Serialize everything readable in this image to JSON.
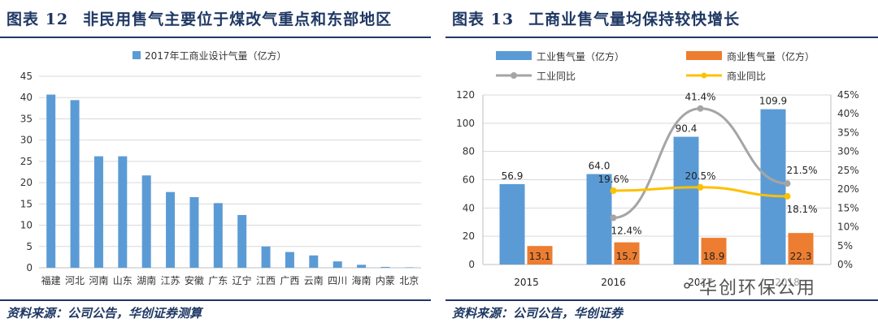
{
  "left": {
    "fig_label": "图表 12",
    "fig_title": "非民用售气主要位于煤改气重点和东部地区",
    "source": "资料来源：公司公告，华创证券测算"
  },
  "right": {
    "fig_label": "图表 13",
    "fig_title": "工商业售气量均保持较快增长",
    "source": "资料来源：公司公告，华创证券"
  },
  "watermark": {
    "text": "华创环保公用",
    "icon": "wechat-icon"
  },
  "colors": {
    "blue": "#5b9bd5",
    "orange": "#ed7d31",
    "gray": "#a5a5a5",
    "gold": "#ffc000",
    "title": "#1f3864"
  },
  "chart_data": [
    {
      "type": "bar",
      "title": "",
      "categories": [
        "福建",
        "河北",
        "河南",
        "山东",
        "湖南",
        "江苏",
        "安徽",
        "广东",
        "辽宁",
        "江西",
        "广西",
        "云南",
        "四川",
        "海南",
        "内蒙",
        "北京"
      ],
      "series": [
        {
          "name": "2017年工商业设计气量（亿方）",
          "values": [
            40.7,
            39.4,
            26.2,
            26.2,
            21.7,
            17.8,
            16.6,
            15.2,
            12.4,
            5.0,
            3.7,
            2.9,
            1.5,
            0.7,
            0.2,
            0.1
          ]
        }
      ],
      "ylim": [
        0,
        45
      ],
      "yticks": [
        0,
        5,
        10,
        15,
        20,
        25,
        30,
        35,
        40,
        45
      ],
      "grid": true,
      "legend": "top"
    },
    {
      "type": "bar",
      "title": "",
      "categories": [
        "2015",
        "2016",
        "2017",
        "2018"
      ],
      "series": [
        {
          "name": "工业售气量（亿方）",
          "kind": "bar",
          "axis": "left",
          "values": [
            56.9,
            64.0,
            90.4,
            109.9
          ],
          "labels": [
            "56.9",
            "64.0",
            "90.4",
            "109.9"
          ]
        },
        {
          "name": "商业售气量（亿方）",
          "kind": "bar",
          "axis": "left",
          "values": [
            13.1,
            15.7,
            18.9,
            22.3
          ],
          "labels": [
            "13.1",
            "15.7",
            "18.9",
            "22.3"
          ]
        },
        {
          "name": "工业同比",
          "kind": "line",
          "axis": "right",
          "values": [
            null,
            12.4,
            41.4,
            21.5
          ],
          "labels": [
            "",
            "12.4%",
            "41.4%",
            "21.5%"
          ]
        },
        {
          "name": "商业同比",
          "kind": "line",
          "axis": "right",
          "values": [
            null,
            19.6,
            20.5,
            18.1
          ],
          "labels": [
            "",
            "19.6%",
            "20.5%",
            "18.1%"
          ]
        }
      ],
      "ylim": [
        0,
        120
      ],
      "yticks": [
        "0",
        "20",
        "40",
        "60",
        "80",
        "100",
        "120"
      ],
      "y2lim": [
        0,
        45
      ],
      "y2ticks": [
        "0%",
        "5%",
        "10%",
        "15%",
        "20%",
        "25%",
        "30%",
        "35%",
        "40%",
        "45%"
      ],
      "grid": true,
      "legend": "top"
    }
  ]
}
